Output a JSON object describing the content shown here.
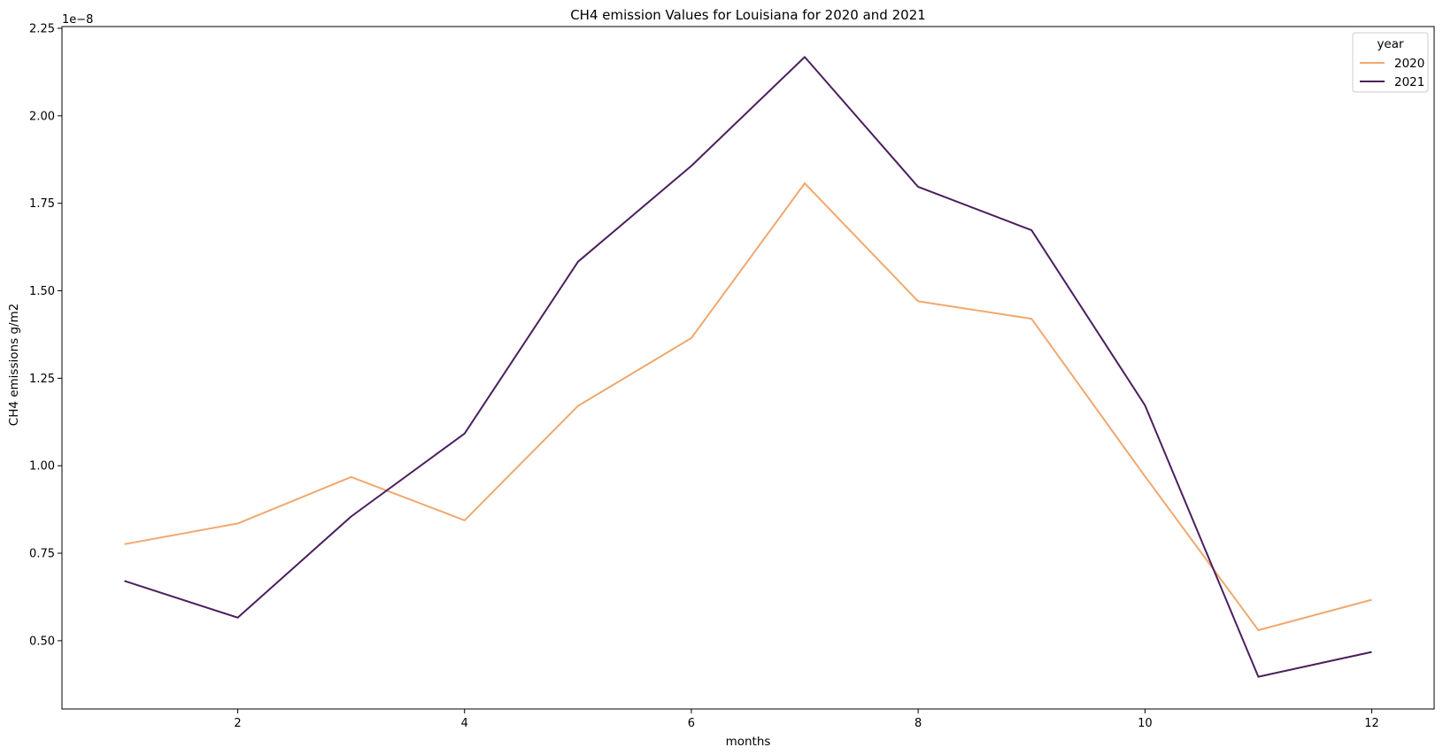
{
  "chart_data": {
    "type": "line",
    "title": "CH4 emission Values for Louisiana for 2020 and 2021",
    "xlabel": "months",
    "ylabel": "CH4 emissions g/m2",
    "y_offset_label": "1e−8",
    "x": [
      1,
      2,
      3,
      4,
      5,
      6,
      7,
      8,
      9,
      10,
      11,
      12
    ],
    "x_ticks": [
      2,
      4,
      6,
      8,
      10,
      12
    ],
    "x_tick_labels": [
      "2",
      "4",
      "6",
      "8",
      "10",
      "12"
    ],
    "y_ticks": [
      0.5,
      0.75,
      1.0,
      1.25,
      1.5,
      1.75,
      2.0,
      2.25
    ],
    "y_tick_labels": [
      "0.50",
      "0.75",
      "1.00",
      "1.25",
      "1.50",
      "1.75",
      "2.00",
      "2.25"
    ],
    "xlim": [
      0.45,
      12.55
    ],
    "ylim": [
      0.305,
      2.255
    ],
    "y_scale": "linear",
    "grid": false,
    "legend": {
      "title": "year",
      "placement": "top-right"
    },
    "series": [
      {
        "name": "2020",
        "color": "#f0a86f",
        "values": [
          0.776,
          0.835,
          0.968,
          0.844,
          1.171,
          1.365,
          1.807,
          1.47,
          1.42,
          0.97,
          0.53,
          0.617
        ]
      },
      {
        "name": "2021",
        "color": "#4b1f5e",
        "values": [
          0.671,
          0.566,
          0.855,
          1.092,
          1.583,
          1.857,
          2.168,
          1.797,
          1.673,
          1.173,
          0.397,
          0.468
        ]
      }
    ]
  }
}
